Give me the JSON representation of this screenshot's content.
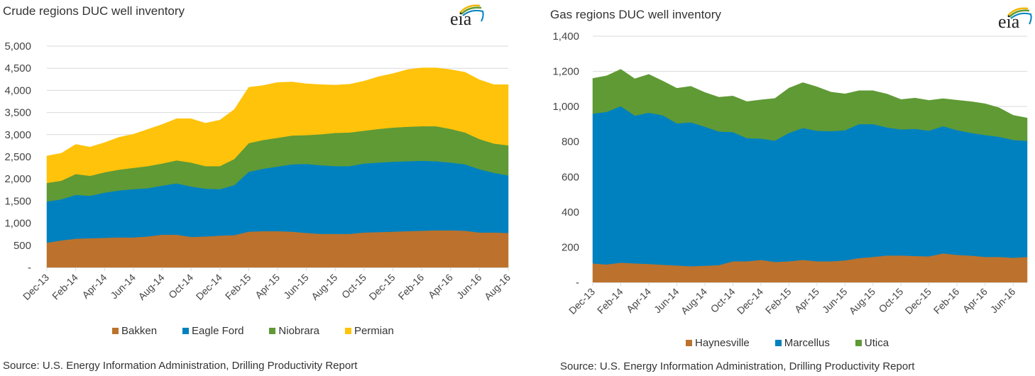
{
  "chart_data": [
    {
      "type": "area",
      "stacked": true,
      "title": "Crude regions DUC well inventory",
      "xlabel": "",
      "ylabel": "",
      "ylim": [
        0,
        5000
      ],
      "yticks": [
        0,
        500,
        1000,
        1500,
        2000,
        2500,
        3000,
        3500,
        4000,
        4500,
        5000
      ],
      "ytick_labels": [
        "-",
        "500",
        "1,000",
        "1,500",
        "2,000",
        "2,500",
        "3,000",
        "3,500",
        "4,000",
        "4,500",
        "5,000"
      ],
      "grid": true,
      "legend_position": "bottom",
      "x": [
        "Dec-13",
        "Jan-14",
        "Feb-14",
        "Mar-14",
        "Apr-14",
        "May-14",
        "Jun-14",
        "Jul-14",
        "Aug-14",
        "Sep-14",
        "Oct-14",
        "Nov-14",
        "Dec-14",
        "Jan-15",
        "Feb-15",
        "Mar-15",
        "Apr-15",
        "May-15",
        "Jun-15",
        "Jul-15",
        "Aug-15",
        "Sep-15",
        "Oct-15",
        "Nov-15",
        "Dec-15",
        "Jan-16",
        "Feb-16",
        "Mar-16",
        "Apr-16",
        "May-16",
        "Jun-16",
        "Jul-16",
        "Aug-16"
      ],
      "xtick_labels": [
        "Dec-13",
        "Feb-14",
        "Apr-14",
        "Jun-14",
        "Aug-14",
        "Oct-14",
        "Dec-14",
        "Feb-15",
        "Apr-15",
        "Jun-15",
        "Aug-15",
        "Oct-15",
        "Dec-15",
        "Feb-16",
        "Apr-16",
        "Jun-16",
        "Aug-16"
      ],
      "series": [
        {
          "name": "Bakken",
          "color": "#BC722C",
          "values": [
            560,
            610,
            650,
            660,
            670,
            680,
            680,
            700,
            740,
            740,
            690,
            700,
            720,
            730,
            810,
            820,
            820,
            810,
            780,
            760,
            760,
            760,
            790,
            800,
            810,
            820,
            830,
            840,
            840,
            830,
            790,
            790,
            780
          ]
        },
        {
          "name": "Eagle Ford",
          "color": "#0081BF",
          "values": [
            930,
            930,
            990,
            960,
            1020,
            1060,
            1090,
            1090,
            1110,
            1160,
            1140,
            1080,
            1050,
            1130,
            1350,
            1410,
            1460,
            1520,
            1560,
            1550,
            1530,
            1530,
            1560,
            1570,
            1580,
            1580,
            1580,
            1560,
            1530,
            1500,
            1430,
            1350,
            1300
          ]
        },
        {
          "name": "Niobrara",
          "color": "#5F9A35",
          "values": [
            420,
            420,
            470,
            450,
            460,
            470,
            480,
            500,
            500,
            520,
            540,
            510,
            520,
            590,
            650,
            650,
            650,
            650,
            650,
            700,
            750,
            760,
            740,
            760,
            770,
            780,
            780,
            790,
            760,
            720,
            680,
            660,
            680
          ]
        },
        {
          "name": "Permian",
          "color": "#FFC30B",
          "values": [
            610,
            620,
            670,
            650,
            670,
            730,
            760,
            830,
            880,
            940,
            990,
            970,
            1040,
            1120,
            1260,
            1230,
            1250,
            1210,
            1160,
            1120,
            1080,
            1090,
            1120,
            1180,
            1220,
            1290,
            1320,
            1320,
            1340,
            1360,
            1340,
            1330,
            1370
          ]
        }
      ]
    },
    {
      "type": "area",
      "stacked": true,
      "title": "Gas regions DUC well inventory",
      "xlabel": "",
      "ylabel": "",
      "ylim": [
        0,
        1400
      ],
      "yticks": [
        0,
        200,
        400,
        600,
        800,
        1000,
        1200,
        1400
      ],
      "ytick_labels": [
        "-",
        "200",
        "400",
        "600",
        "800",
        "1,000",
        "1,200",
        "1,400"
      ],
      "grid": true,
      "legend_position": "bottom",
      "x": [
        "Dec-13",
        "Jan-14",
        "Feb-14",
        "Mar-14",
        "Apr-14",
        "May-14",
        "Jun-14",
        "Jul-14",
        "Aug-14",
        "Sep-14",
        "Oct-14",
        "Nov-14",
        "Dec-14",
        "Jan-15",
        "Feb-15",
        "Mar-15",
        "Apr-15",
        "May-15",
        "Jun-15",
        "Jul-15",
        "Aug-15",
        "Sep-15",
        "Oct-15",
        "Nov-15",
        "Dec-15",
        "Jan-16",
        "Feb-16",
        "Mar-16",
        "Apr-16",
        "May-16",
        "Jun-16",
        "Jul-16"
      ],
      "xtick_labels": [
        "Dec-13",
        "Feb-14",
        "Apr-14",
        "Jun-14",
        "Aug-14",
        "Oct-14",
        "Dec-14",
        "Feb-15",
        "Apr-15",
        "Jun-15",
        "Aug-15",
        "Oct-15",
        "Dec-15",
        "Feb-16",
        "Apr-16",
        "Jun-16"
      ],
      "series": [
        {
          "name": "Haynesville",
          "color": "#BC722C",
          "values": [
            108,
            102,
            112,
            108,
            105,
            100,
            96,
            92,
            95,
            98,
            120,
            120,
            128,
            116,
            120,
            128,
            120,
            120,
            125,
            138,
            145,
            153,
            153,
            150,
            148,
            165,
            156,
            152,
            145,
            145,
            140,
            145
          ]
        },
        {
          "name": "Marcellus",
          "color": "#0081BF",
          "values": [
            852,
            868,
            890,
            840,
            860,
            850,
            808,
            818,
            790,
            760,
            735,
            700,
            690,
            690,
            730,
            750,
            742,
            740,
            740,
            762,
            755,
            728,
            717,
            723,
            715,
            723,
            710,
            698,
            693,
            683,
            670,
            660
          ]
        },
        {
          "name": "Utica",
          "color": "#5F9A35",
          "values": [
            200,
            205,
            210,
            210,
            218,
            195,
            200,
            205,
            195,
            195,
            205,
            208,
            220,
            240,
            255,
            258,
            250,
            222,
            207,
            190,
            190,
            190,
            170,
            175,
            172,
            157,
            170,
            178,
            178,
            165,
            140,
            130
          ]
        }
      ]
    }
  ],
  "left": {
    "title": "Crude regions DUC well inventory",
    "source": "Source:  U.S. Energy Information Administration, Drilling Productivity Report",
    "logo": "eia"
  },
  "right": {
    "title": "Gas regions DUC well inventory",
    "source": "Source:  U.S. Energy Information Administration, Drilling Productivity Report",
    "logo": "eia"
  }
}
